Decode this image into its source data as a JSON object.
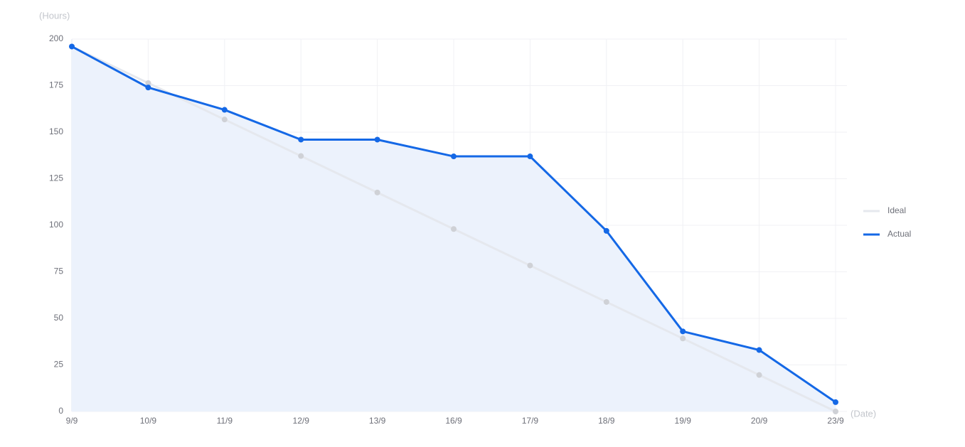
{
  "chart_data": {
    "type": "line",
    "y_axis_name": "(Hours)",
    "x_axis_name": "(Date)",
    "categories": [
      "9/9",
      "10/9",
      "11/9",
      "12/9",
      "13/9",
      "16/9",
      "17/9",
      "18/9",
      "19/9",
      "20/9",
      "23/9"
    ],
    "series": [
      {
        "name": "Ideal",
        "color": "#e5e8ee",
        "marker_color": "#cfd1d6",
        "values": [
          196,
          176.4,
          156.8,
          137.2,
          117.6,
          98,
          78.4,
          58.8,
          39.2,
          19.6,
          0
        ]
      },
      {
        "name": "Actual",
        "color": "#1468e6",
        "marker_color": "#1468e6",
        "area_color": "#ecf2fc",
        "values": [
          196,
          174,
          162,
          146,
          146,
          137,
          137,
          97,
          43,
          33,
          5
        ]
      }
    ],
    "ylim": [
      0,
      200
    ],
    "yticks": [
      0,
      25,
      50,
      75,
      100,
      125,
      150,
      175,
      200
    ],
    "grid": true,
    "legend": "right"
  }
}
